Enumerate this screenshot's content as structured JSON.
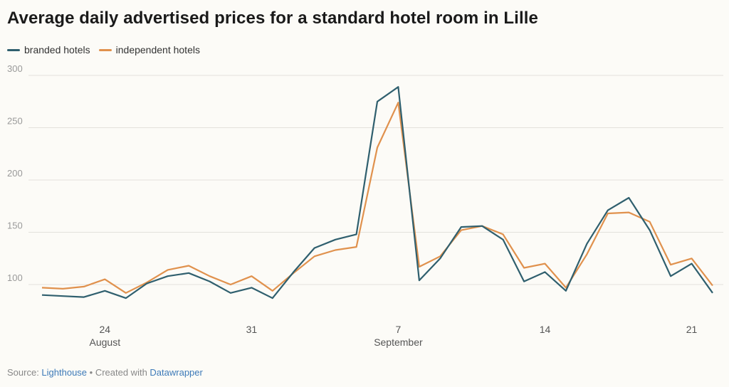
{
  "chart_data": {
    "type": "line",
    "title": "Average daily advertised prices for a standard hotel room in Lille",
    "xlabel": "",
    "ylabel": "",
    "ylim": [
      75,
      305
    ],
    "yticks": [
      100,
      150,
      200,
      250,
      300
    ],
    "x_start_day": 21,
    "x_ticks": [
      {
        "day": 24,
        "label": "24",
        "month": "August"
      },
      {
        "day": 31,
        "label": "31",
        "month": ""
      },
      {
        "day": 38,
        "label": "7",
        "month": "September"
      },
      {
        "day": 45,
        "label": "14",
        "month": ""
      },
      {
        "day": 52,
        "label": "21",
        "month": ""
      }
    ],
    "series": [
      {
        "name": "branded hotels",
        "color": "#2f5f6e",
        "values": [
          90,
          89,
          88,
          94,
          87,
          101,
          108,
          111,
          103,
          92,
          97,
          87,
          112,
          135,
          143,
          148,
          275,
          289,
          104,
          125,
          155,
          156,
          143,
          103,
          112,
          94,
          139,
          171,
          183,
          152,
          108,
          120,
          92
        ]
      },
      {
        "name": "independent hotels",
        "color": "#e0914d",
        "values": [
          97,
          96,
          98,
          105,
          92,
          102,
          114,
          118,
          108,
          100,
          108,
          94,
          111,
          127,
          133,
          136,
          231,
          274,
          117,
          127,
          152,
          156,
          148,
          116,
          120,
          97,
          129,
          168,
          169,
          160,
          119,
          125,
          99
        ]
      }
    ]
  },
  "footer": {
    "source_label": "Source: ",
    "source_link": "Lighthouse",
    "separator": " • Created with ",
    "tool_link": "Datawrapper"
  }
}
